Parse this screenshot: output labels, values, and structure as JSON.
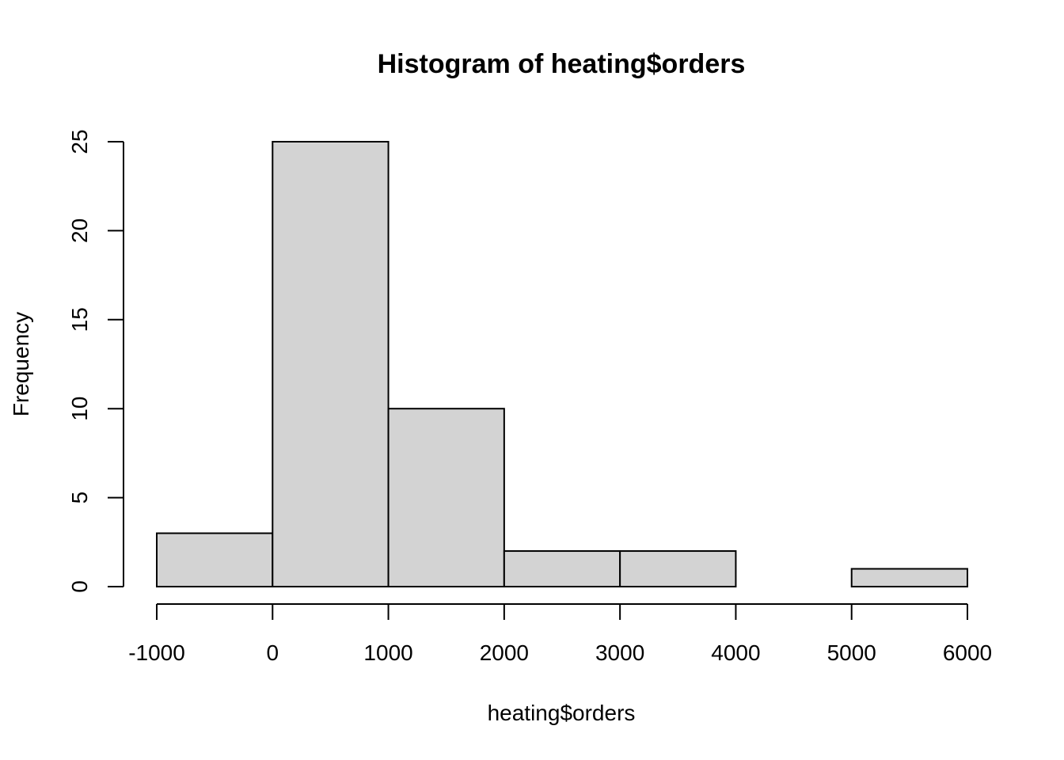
{
  "chart_data": {
    "type": "bar",
    "title": "Histogram of heating$orders",
    "xlabel": "heating$orders",
    "ylabel": "Frequency",
    "bins": [
      {
        "from": -1000,
        "to": 0,
        "count": 3
      },
      {
        "from": 0,
        "to": 1000,
        "count": 25
      },
      {
        "from": 1000,
        "to": 2000,
        "count": 10
      },
      {
        "from": 2000,
        "to": 3000,
        "count": 2
      },
      {
        "from": 3000,
        "to": 4000,
        "count": 2
      },
      {
        "from": 4000,
        "to": 5000,
        "count": 0
      },
      {
        "from": 5000,
        "to": 6000,
        "count": 1
      }
    ],
    "xlim": [
      -1000,
      6000
    ],
    "ylim": [
      0,
      25
    ],
    "x_ticks": [
      -1000,
      0,
      1000,
      2000,
      3000,
      4000,
      5000,
      6000
    ],
    "x_tick_labels": [
      "-1000",
      "0",
      "1000",
      "2000",
      "3000",
      "4000",
      "5000",
      "6000"
    ],
    "y_ticks": [
      0,
      5,
      10,
      15,
      20,
      25
    ],
    "y_tick_labels": [
      "0",
      "5",
      "10",
      "15",
      "20",
      "25"
    ],
    "grid": false,
    "colors": {
      "bar_fill": "#d3d3d3",
      "bar_stroke": "#000000"
    }
  }
}
